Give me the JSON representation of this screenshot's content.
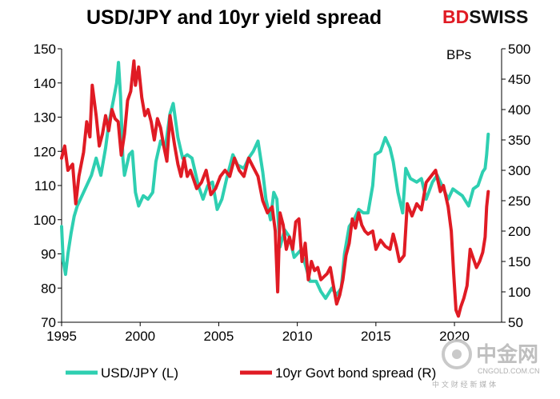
{
  "chart_data": {
    "type": "line",
    "title": "USD/JPY and 10yr yield spread",
    "x_ticks": [
      "1995",
      "2000",
      "2005",
      "2010",
      "2015",
      "2020"
    ],
    "x_range": [
      1995,
      2023
    ],
    "y_left": {
      "ticks": [
        "150",
        "140",
        "130",
        "120",
        "110",
        "100",
        "90",
        "80",
        "70"
      ],
      "range": [
        70,
        150
      ]
    },
    "y_right": {
      "label": "BPs",
      "ticks": [
        "500",
        "450",
        "400",
        "350",
        "300",
        "250",
        "200",
        "150",
        "100",
        "50"
      ],
      "range": [
        50,
        500
      ]
    },
    "grid": false,
    "legend_position": "bottom",
    "series": [
      {
        "name": "USD/JPY (L)",
        "axis": "left",
        "color": "#2ecfb1",
        "points": [
          [
            1995.0,
            98
          ],
          [
            1995.1,
            88
          ],
          [
            1995.25,
            84
          ],
          [
            1995.4,
            90
          ],
          [
            1995.6,
            96
          ],
          [
            1995.8,
            101
          ],
          [
            1996.0,
            104
          ],
          [
            1996.3,
            107
          ],
          [
            1996.6,
            110
          ],
          [
            1996.9,
            113
          ],
          [
            1997.2,
            118
          ],
          [
            1997.5,
            113
          ],
          [
            1997.8,
            121
          ],
          [
            1998.0,
            128
          ],
          [
            1998.3,
            135
          ],
          [
            1998.5,
            140
          ],
          [
            1998.62,
            146
          ],
          [
            1998.75,
            136
          ],
          [
            1998.9,
            118
          ],
          [
            1999.0,
            113
          ],
          [
            1999.3,
            119
          ],
          [
            1999.5,
            120
          ],
          [
            1999.7,
            108
          ],
          [
            1999.9,
            104
          ],
          [
            2000.2,
            107
          ],
          [
            2000.5,
            106
          ],
          [
            2000.8,
            108
          ],
          [
            2001.0,
            117
          ],
          [
            2001.3,
            123
          ],
          [
            2001.6,
            121
          ],
          [
            2001.9,
            131
          ],
          [
            2002.1,
            134
          ],
          [
            2002.4,
            124
          ],
          [
            2002.7,
            118
          ],
          [
            2003.0,
            119
          ],
          [
            2003.3,
            118
          ],
          [
            2003.7,
            110
          ],
          [
            2004.0,
            106
          ],
          [
            2004.3,
            110
          ],
          [
            2004.6,
            111
          ],
          [
            2004.9,
            103
          ],
          [
            2005.2,
            106
          ],
          [
            2005.5,
            112
          ],
          [
            2005.9,
            119
          ],
          [
            2006.2,
            116
          ],
          [
            2006.6,
            115
          ],
          [
            2006.9,
            118
          ],
          [
            2007.2,
            120
          ],
          [
            2007.5,
            123
          ],
          [
            2007.8,
            114
          ],
          [
            2008.0,
            106
          ],
          [
            2008.3,
            100
          ],
          [
            2008.5,
            108
          ],
          [
            2008.7,
            106
          ],
          [
            2008.9,
            92
          ],
          [
            2009.2,
            97
          ],
          [
            2009.5,
            95
          ],
          [
            2009.8,
            89
          ],
          [
            2010.2,
            91
          ],
          [
            2010.5,
            87
          ],
          [
            2010.8,
            82
          ],
          [
            2011.2,
            82
          ],
          [
            2011.5,
            79
          ],
          [
            2011.8,
            77
          ],
          [
            2012.2,
            80
          ],
          [
            2012.5,
            78
          ],
          [
            2012.8,
            80
          ],
          [
            2013.0,
            90
          ],
          [
            2013.3,
            98
          ],
          [
            2013.6,
            100
          ],
          [
            2013.9,
            103
          ],
          [
            2014.2,
            102
          ],
          [
            2014.5,
            102
          ],
          [
            2014.8,
            110
          ],
          [
            2014.95,
            119
          ],
          [
            2015.3,
            120
          ],
          [
            2015.6,
            124
          ],
          [
            2015.9,
            121
          ],
          [
            2016.1,
            117
          ],
          [
            2016.4,
            108
          ],
          [
            2016.7,
            102
          ],
          [
            2016.9,
            115
          ],
          [
            2017.2,
            112
          ],
          [
            2017.6,
            111
          ],
          [
            2017.9,
            112
          ],
          [
            2018.2,
            106
          ],
          [
            2018.6,
            111
          ],
          [
            2018.9,
            113
          ],
          [
            2019.2,
            110
          ],
          [
            2019.6,
            106
          ],
          [
            2019.9,
            109
          ],
          [
            2020.2,
            108
          ],
          [
            2020.5,
            107
          ],
          [
            2020.9,
            104
          ],
          [
            2021.2,
            109
          ],
          [
            2021.5,
            110
          ],
          [
            2021.8,
            114
          ],
          [
            2021.95,
            115
          ],
          [
            2022.05,
            119
          ],
          [
            2022.15,
            125
          ]
        ]
      },
      {
        "name": "10yr Govt bond spread (R)",
        "axis": "right",
        "color": "#e01b24",
        "points": [
          [
            1995.0,
            320
          ],
          [
            1995.2,
            340
          ],
          [
            1995.4,
            300
          ],
          [
            1995.7,
            310
          ],
          [
            1995.9,
            245
          ],
          [
            1996.1,
            290
          ],
          [
            1996.4,
            330
          ],
          [
            1996.6,
            380
          ],
          [
            1996.8,
            355
          ],
          [
            1996.95,
            440
          ],
          [
            1997.2,
            390
          ],
          [
            1997.4,
            340
          ],
          [
            1997.6,
            360
          ],
          [
            1997.8,
            390
          ],
          [
            1998.0,
            365
          ],
          [
            1998.2,
            400
          ],
          [
            1998.4,
            385
          ],
          [
            1998.6,
            380
          ],
          [
            1998.8,
            325
          ],
          [
            1999.0,
            360
          ],
          [
            1999.2,
            415
          ],
          [
            1999.4,
            430
          ],
          [
            1999.6,
            480
          ],
          [
            1999.7,
            440
          ],
          [
            1999.9,
            470
          ],
          [
            2000.1,
            420
          ],
          [
            2000.3,
            390
          ],
          [
            2000.5,
            400
          ],
          [
            2000.7,
            380
          ],
          [
            2000.9,
            350
          ],
          [
            2001.1,
            385
          ],
          [
            2001.3,
            370
          ],
          [
            2001.5,
            340
          ],
          [
            2001.7,
            315
          ],
          [
            2001.9,
            390
          ],
          [
            2002.2,
            340
          ],
          [
            2002.4,
            310
          ],
          [
            2002.6,
            290
          ],
          [
            2002.8,
            320
          ],
          [
            2003.0,
            290
          ],
          [
            2003.2,
            300
          ],
          [
            2003.4,
            285
          ],
          [
            2003.6,
            270
          ],
          [
            2003.9,
            280
          ],
          [
            2004.2,
            300
          ],
          [
            2004.5,
            260
          ],
          [
            2004.8,
            270
          ],
          [
            2005.1,
            290
          ],
          [
            2005.4,
            300
          ],
          [
            2005.7,
            290
          ],
          [
            2006.0,
            320
          ],
          [
            2006.3,
            300
          ],
          [
            2006.6,
            290
          ],
          [
            2006.9,
            320
          ],
          [
            2007.2,
            305
          ],
          [
            2007.5,
            290
          ],
          [
            2007.8,
            250
          ],
          [
            2008.1,
            230
          ],
          [
            2008.4,
            240
          ],
          [
            2008.6,
            200
          ],
          [
            2008.75,
            100
          ],
          [
            2008.9,
            230
          ],
          [
            2009.1,
            210
          ],
          [
            2009.3,
            170
          ],
          [
            2009.5,
            190
          ],
          [
            2009.7,
            170
          ],
          [
            2009.9,
            215
          ],
          [
            2010.1,
            220
          ],
          [
            2010.3,
            150
          ],
          [
            2010.5,
            180
          ],
          [
            2010.7,
            120
          ],
          [
            2010.9,
            150
          ],
          [
            2011.1,
            135
          ],
          [
            2011.3,
            140
          ],
          [
            2011.5,
            120
          ],
          [
            2011.7,
            125
          ],
          [
            2011.9,
            130
          ],
          [
            2012.1,
            140
          ],
          [
            2012.3,
            110
          ],
          [
            2012.5,
            80
          ],
          [
            2012.7,
            95
          ],
          [
            2012.9,
            120
          ],
          [
            2013.1,
            160
          ],
          [
            2013.3,
            180
          ],
          [
            2013.5,
            220
          ],
          [
            2013.7,
            205
          ],
          [
            2013.9,
            230
          ],
          [
            2014.1,
            210
          ],
          [
            2014.3,
            200
          ],
          [
            2014.5,
            195
          ],
          [
            2014.8,
            200
          ],
          [
            2015.0,
            170
          ],
          [
            2015.3,
            185
          ],
          [
            2015.6,
            175
          ],
          [
            2015.9,
            170
          ],
          [
            2016.1,
            195
          ],
          [
            2016.3,
            175
          ],
          [
            2016.5,
            150
          ],
          [
            2016.8,
            160
          ],
          [
            2017.0,
            245
          ],
          [
            2017.3,
            225
          ],
          [
            2017.6,
            245
          ],
          [
            2017.9,
            235
          ],
          [
            2018.2,
            280
          ],
          [
            2018.5,
            290
          ],
          [
            2018.8,
            300
          ],
          [
            2019.1,
            265
          ],
          [
            2019.3,
            275
          ],
          [
            2019.6,
            240
          ],
          [
            2019.8,
            200
          ],
          [
            2019.95,
            130
          ],
          [
            2020.1,
            70
          ],
          [
            2020.25,
            60
          ],
          [
            2020.4,
            75
          ],
          [
            2020.6,
            90
          ],
          [
            2020.8,
            110
          ],
          [
            2021.0,
            170
          ],
          [
            2021.2,
            155
          ],
          [
            2021.4,
            140
          ],
          [
            2021.6,
            150
          ],
          [
            2021.8,
            165
          ],
          [
            2021.95,
            190
          ],
          [
            2022.05,
            240
          ],
          [
            2022.15,
            265
          ]
        ]
      }
    ]
  },
  "brand": {
    "prefix": "BD",
    "suffix": "SWISS",
    "prefix_color": "#e01b24",
    "suffix_color": "#111111"
  },
  "watermark": {
    "name_cn": "中金网",
    "url": "CNGOLD.COM.CN",
    "subtitle_cn": "中 文 财 经 新 媒 体"
  },
  "colors": {
    "axis": "#000000",
    "background": "#ffffff"
  }
}
